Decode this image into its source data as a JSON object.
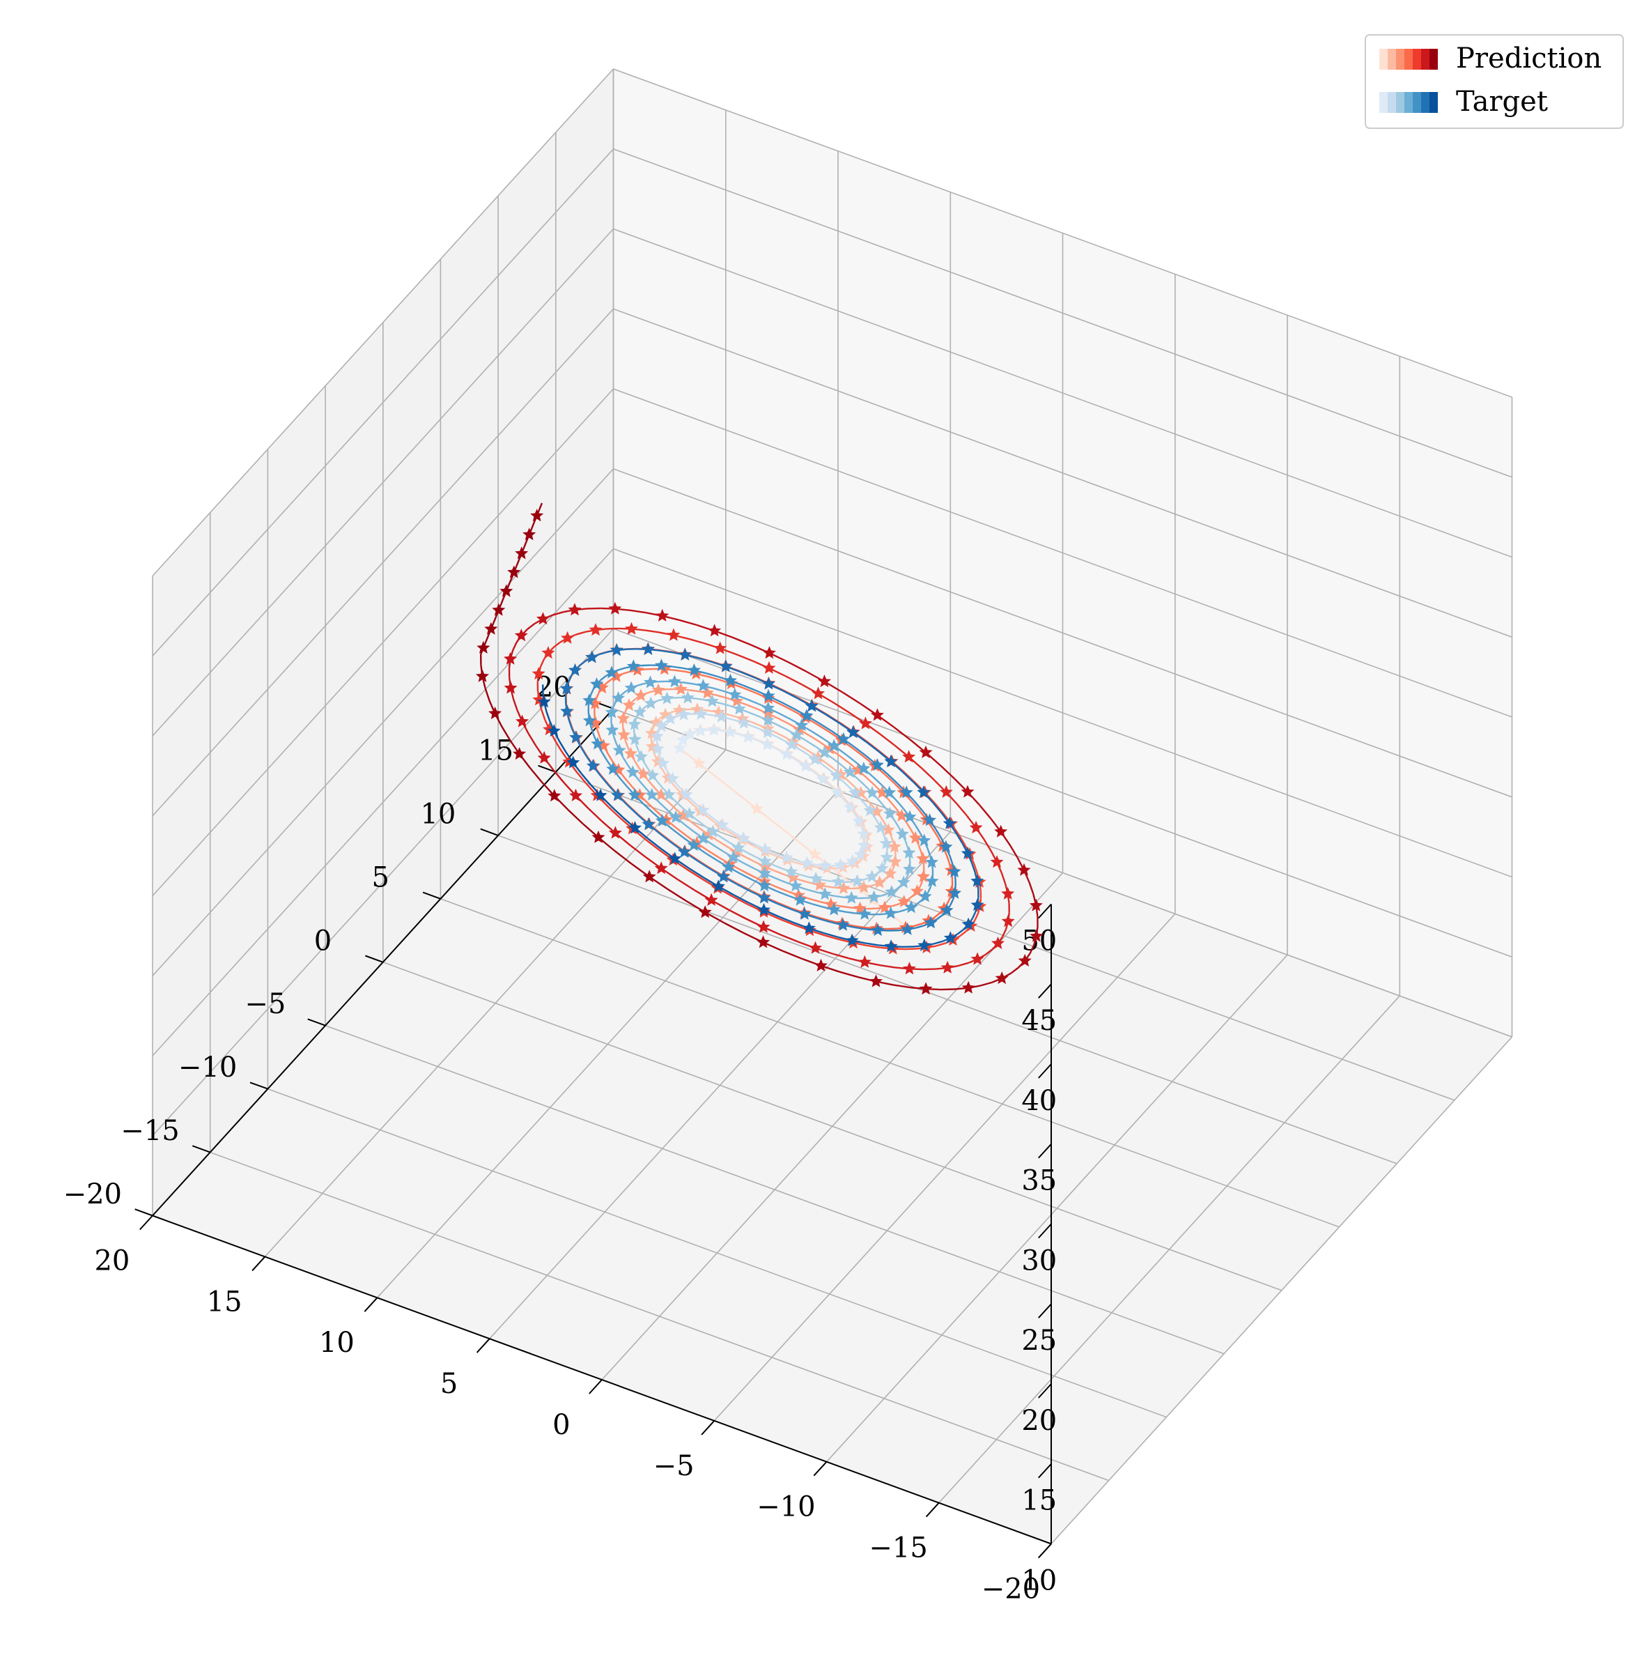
{
  "chart_data": {
    "type": "line3d",
    "title": "",
    "axes": {
      "x": {
        "label": "",
        "range": [
          -20,
          20
        ],
        "ticks": [
          -20,
          -15,
          -10,
          -5,
          0,
          5,
          10,
          15,
          20
        ]
      },
      "y": {
        "label": "",
        "range": [
          -20,
          20
        ],
        "ticks": [
          -20,
          -15,
          -10,
          -5,
          0,
          5,
          10,
          15,
          20
        ]
      },
      "z": {
        "label": "",
        "range": [
          10,
          50
        ],
        "ticks": [
          10,
          15,
          20,
          25,
          30,
          35,
          40,
          45,
          50
        ]
      }
    },
    "grid": true,
    "legend": {
      "placement": "top-right",
      "entries": [
        {
          "name": "Prediction",
          "swatch_colors": [
            "#fee0d2",
            "#fcbba1",
            "#fc9272",
            "#fb6a4a",
            "#ef3b2c",
            "#cb181d",
            "#99000d"
          ]
        },
        {
          "name": "Target",
          "swatch_colors": [
            "#deebf7",
            "#c6dbef",
            "#9ecae1",
            "#6baed6",
            "#4292c6",
            "#2171b5",
            "#08519c"
          ]
        }
      ]
    },
    "series": [
      {
        "name": "Prediction",
        "marker": "star",
        "colormap": "Reds",
        "description_params": {
          "center": [
            5.5,
            5.0,
            24.0
          ],
          "orbits": 7,
          "radius_start": 3.5,
          "radius_end": 11.5,
          "points_per_orbit": 90,
          "tilt": "x-z plane",
          "start_point": [
            -3.0,
            1.0,
            23.0
          ],
          "tail_end": [
            16.0,
            6.0,
            36.0
          ]
        }
      },
      {
        "name": "Target",
        "marker": "star",
        "colormap": "Blues",
        "description_params": {
          "center": [
            5.5,
            5.0,
            24.0
          ],
          "orbits": 6,
          "radius_start": 3.5,
          "radius_end": 9.0,
          "points_per_orbit": 90,
          "tilt": "x-z plane"
        }
      }
    ]
  }
}
